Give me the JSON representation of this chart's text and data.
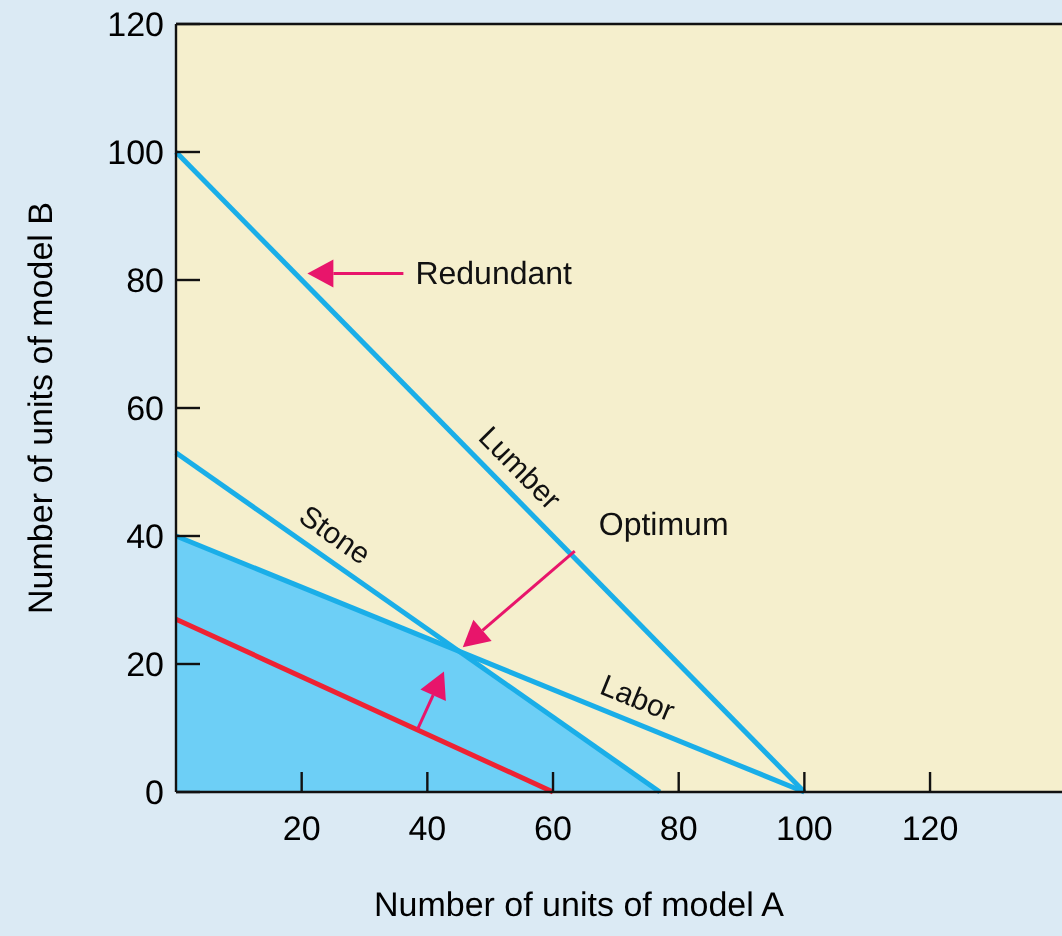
{
  "chart_data": {
    "type": "line",
    "xlabel": "Number of units of model A",
    "ylabel": "Number of units of model B",
    "xlim": [
      0,
      141
    ],
    "ylim": [
      0,
      120
    ],
    "xticks": [
      20,
      40,
      60,
      80,
      100,
      120
    ],
    "yticks": [
      0,
      20,
      40,
      60,
      80,
      100,
      120
    ],
    "grid": false,
    "marker": "none",
    "line_style": "solid",
    "series": [
      {
        "type": "area",
        "color": "#6dcff6",
        "x": [
          0,
          45,
          77
        ],
        "values": [
          40,
          22,
          0
        ]
      },
      {
        "name": "Lumber",
        "color": "#1aaee8",
        "x": [
          0,
          100
        ],
        "values": [
          100,
          0
        ]
      },
      {
        "name": "Stone",
        "color": "#1aaee8",
        "x": [
          0,
          77
        ],
        "values": [
          53,
          0
        ]
      },
      {
        "name": "Labor",
        "color": "#1aaee8",
        "x": [
          0,
          100
        ],
        "values": [
          40,
          0
        ]
      },
      {
        "color": "#ee2233",
        "x": [
          0,
          60
        ],
        "values": [
          27,
          0
        ]
      }
    ],
    "annotations": [
      "Redundant",
      "Optimum"
    ]
  }
}
